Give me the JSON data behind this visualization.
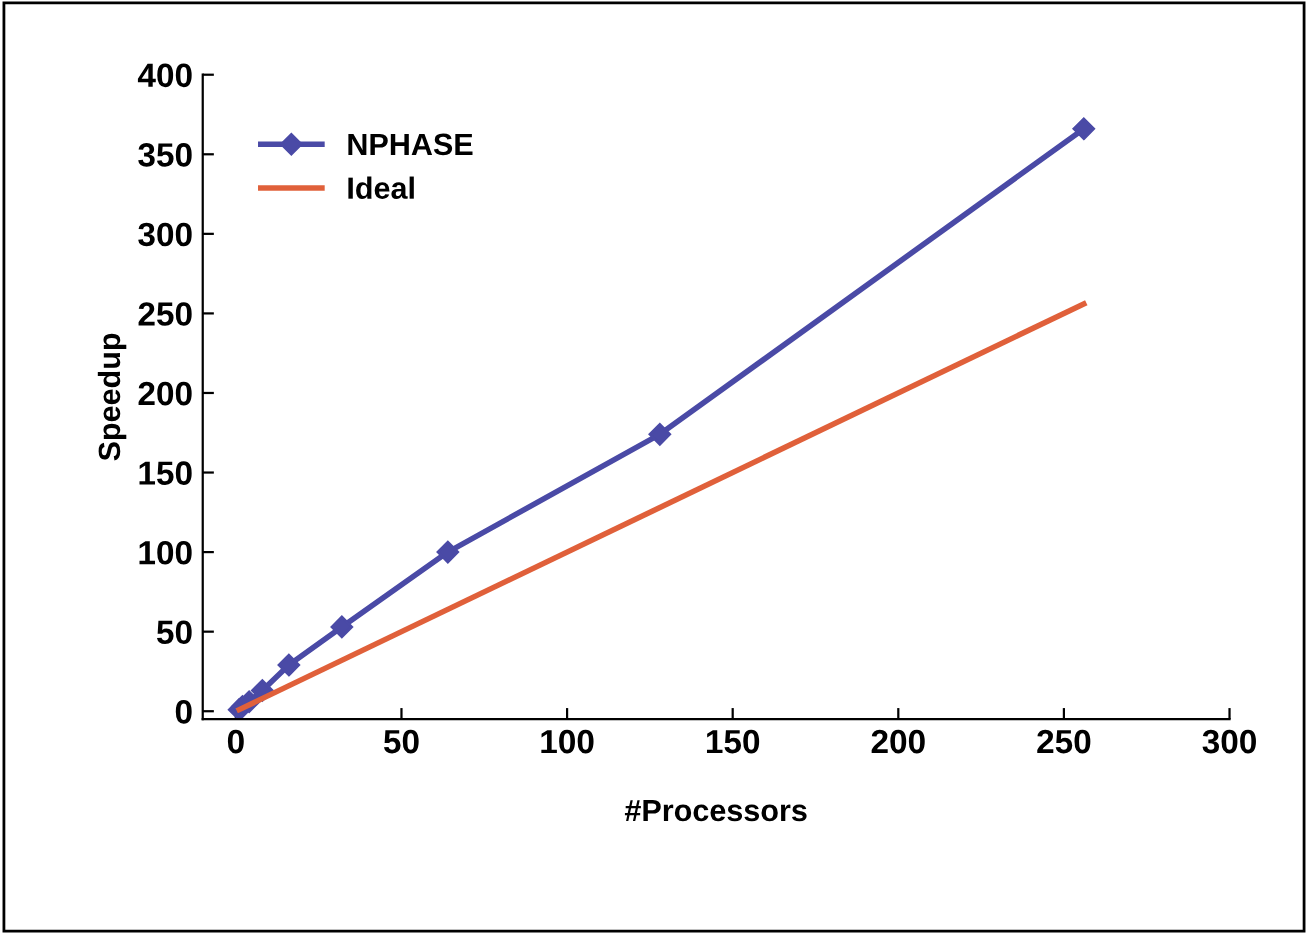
{
  "chart_data": {
    "type": "line",
    "xlabel": "#Processors",
    "ylabel": "Speedup",
    "series": [
      {
        "name": "NPHASE",
        "color": "#4a4aa6",
        "marker": "diamond",
        "x": [
          1,
          2,
          4,
          8,
          16,
          32,
          64,
          128,
          256
        ],
        "values": [
          1,
          3,
          6,
          13,
          29,
          53,
          100,
          174,
          366
        ]
      },
      {
        "name": "Ideal",
        "color": "#e0603a",
        "marker": "none",
        "x": [
          1,
          256
        ],
        "values": [
          1,
          256
        ]
      }
    ],
    "xlim": [
      -10,
      300
    ],
    "xticks": [
      0,
      50,
      100,
      150,
      200,
      250,
      300
    ],
    "ylim": [
      -5,
      400
    ],
    "yticks": [
      0,
      50,
      100,
      150,
      200,
      250,
      300,
      350,
      400
    ],
    "grid": false,
    "legend": "top left"
  }
}
